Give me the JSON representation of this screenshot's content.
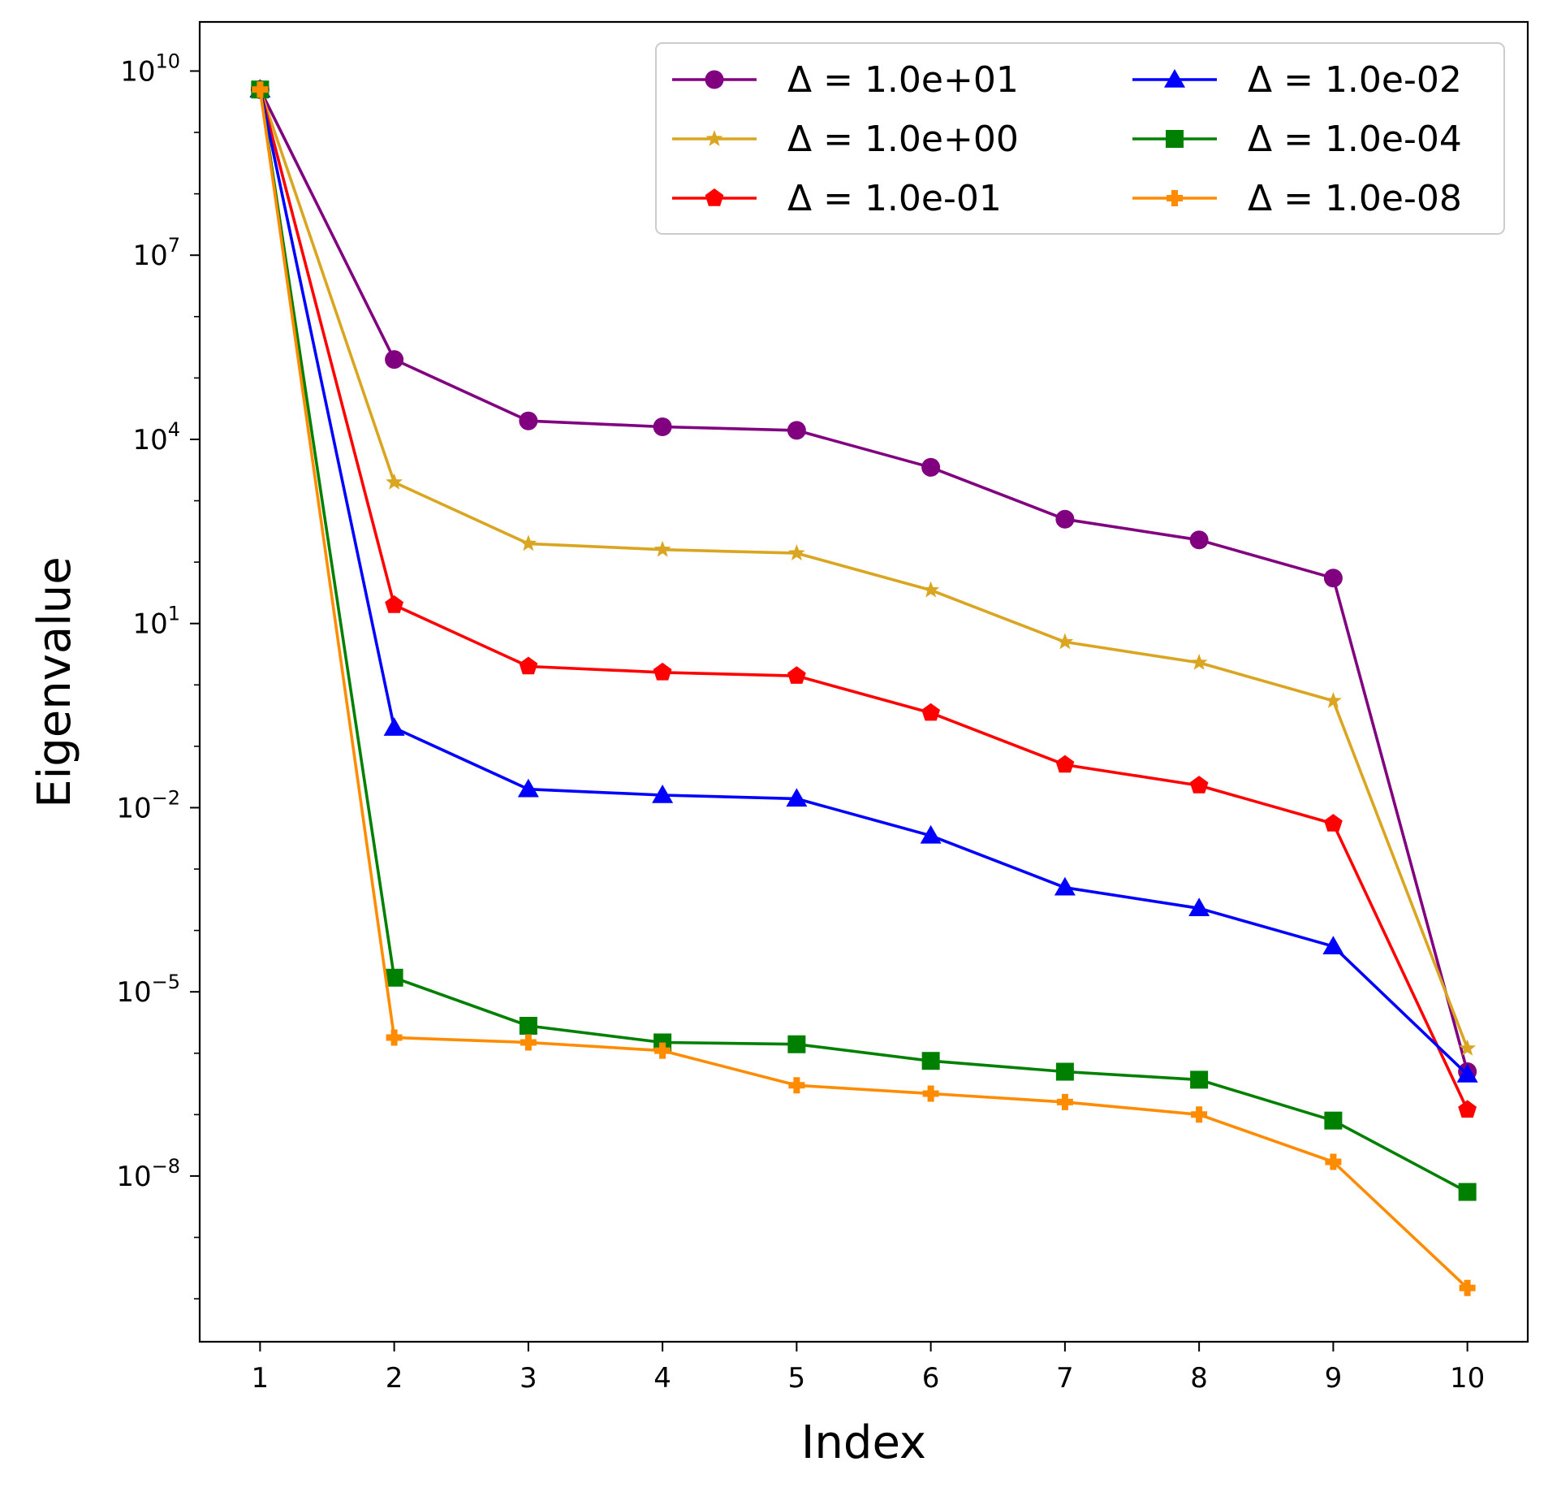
{
  "chart_data": {
    "type": "line",
    "title": "",
    "xlabel": "Index",
    "ylabel": "Eigenvalue",
    "x": [
      1,
      2,
      3,
      4,
      5,
      6,
      7,
      8,
      9,
      10
    ],
    "xlim": [
      0.55,
      10.45
    ],
    "y_scale": "log",
    "ylim_exp": [
      -10.7,
      10.8
    ],
    "y_ticks": [
      {
        "base": "10",
        "exp": "10"
      },
      {
        "base": "10",
        "exp": "7"
      },
      {
        "base": "10",
        "exp": "4"
      },
      {
        "base": "10",
        "exp": "1"
      },
      {
        "base": "10",
        "exp": "−2"
      },
      {
        "base": "10",
        "exp": "−5"
      },
      {
        "base": "10",
        "exp": "−8"
      }
    ],
    "y_tick_exps": [
      10,
      7,
      4,
      1,
      -2,
      -5,
      -8
    ],
    "grid": false,
    "legend_position": "top-right",
    "legend_columns": 2,
    "series": [
      {
        "name": "Δ = 1.0e+01",
        "color": "#800080",
        "marker": "circle",
        "values": [
          5000000000.0,
          200000.0,
          20000.0,
          16000.0,
          14000.0,
          3500.0,
          500.0,
          230.0,
          55.0,
          5e-07
        ]
      },
      {
        "name": "Δ = 1.0e+00",
        "color": "#DAA520",
        "marker": "star",
        "values": [
          5000000000.0,
          2000.0,
          200.0,
          160.0,
          140.0,
          35.0,
          5.0,
          2.3,
          0.55,
          1.2e-06
        ]
      },
      {
        "name": "Δ = 1.0e-01",
        "color": "#FF0000",
        "marker": "pentagon",
        "values": [
          5000000000.0,
          20.0,
          2.0,
          1.6,
          1.4,
          0.35,
          0.05,
          0.023,
          0.0055,
          1.2e-07
        ]
      },
      {
        "name": "Δ = 1.0e-02",
        "color": "#0000FF",
        "marker": "triangle",
        "values": [
          5000000000.0,
          0.2,
          0.02,
          0.016,
          0.014,
          0.0035,
          0.0005,
          0.00023,
          5.5e-05,
          4.5e-07
        ]
      },
      {
        "name": "Δ = 1.0e-04",
        "color": "#008000",
        "marker": "square",
        "values": [
          5000000000.0,
          1.7e-05,
          2.8e-06,
          1.5e-06,
          1.4e-06,
          7.5e-07,
          5e-07,
          3.7e-07,
          8e-08,
          5.5e-09
        ]
      },
      {
        "name": "Δ = 1.0e-08",
        "color": "#FF8C00",
        "marker": "plus",
        "values": [
          5000000000.0,
          1.8e-06,
          1.5e-06,
          1.1e-06,
          3e-07,
          2.2e-07,
          1.6e-07,
          1e-07,
          1.7e-08,
          1.5e-10
        ]
      }
    ]
  }
}
